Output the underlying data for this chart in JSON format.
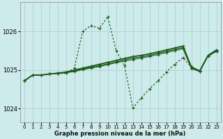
{
  "title": "Graphe pression niveau de la mer (hPa)",
  "background_color": "#ceeaea",
  "grid_color": "#aad4d4",
  "line_color": "#1a5c1a",
  "marker_color": "#1a5c1a",
  "xlim": [
    -0.5,
    23.5
  ],
  "ylim": [
    1023.65,
    1026.75
  ],
  "yticks": [
    1024,
    1025,
    1026
  ],
  "xticks": [
    0,
    1,
    2,
    3,
    4,
    5,
    6,
    7,
    8,
    9,
    10,
    11,
    12,
    13,
    14,
    15,
    16,
    17,
    18,
    19,
    20,
    21,
    22,
    23
  ],
  "main_x": [
    0,
    1,
    2,
    3,
    4,
    5,
    6,
    7,
    8,
    9,
    10,
    11,
    12,
    13,
    14,
    15,
    16,
    17,
    18,
    19,
    20,
    21,
    22,
    23
  ],
  "main_y": [
    1024.72,
    1024.87,
    1024.87,
    1024.9,
    1024.91,
    1024.92,
    1025.05,
    1026.0,
    1026.15,
    1026.08,
    1026.38,
    1025.5,
    1025.12,
    1024.02,
    1024.28,
    1024.52,
    1024.72,
    1024.95,
    1025.15,
    1025.32,
    1025.08,
    1024.98,
    1025.38,
    1025.48
  ],
  "flat_series": [
    {
      "y": [
        1024.72,
        1024.87,
        1024.87,
        1024.9,
        1024.92,
        1024.95,
        1025.0,
        1025.05,
        1025.1,
        1025.15,
        1025.2,
        1025.25,
        1025.3,
        1025.35,
        1025.38,
        1025.42,
        1025.47,
        1025.52,
        1025.57,
        1025.62,
        1025.08,
        1024.98,
        1025.38,
        1025.52
      ],
      "linewidth": 1.3
    },
    {
      "y": [
        1024.72,
        1024.87,
        1024.87,
        1024.9,
        1024.92,
        1024.94,
        1024.98,
        1025.03,
        1025.07,
        1025.11,
        1025.16,
        1025.21,
        1025.26,
        1025.31,
        1025.34,
        1025.38,
        1025.43,
        1025.48,
        1025.53,
        1025.58,
        1025.06,
        1024.97,
        1025.37,
        1025.5
      ],
      "linewidth": 1.0
    },
    {
      "y": [
        1024.72,
        1024.87,
        1024.87,
        1024.9,
        1024.91,
        1024.93,
        1024.96,
        1025.01,
        1025.05,
        1025.09,
        1025.14,
        1025.19,
        1025.23,
        1025.27,
        1025.31,
        1025.35,
        1025.4,
        1025.45,
        1025.5,
        1025.55,
        1025.04,
        1024.96,
        1025.36,
        1025.48
      ],
      "linewidth": 0.7
    }
  ]
}
